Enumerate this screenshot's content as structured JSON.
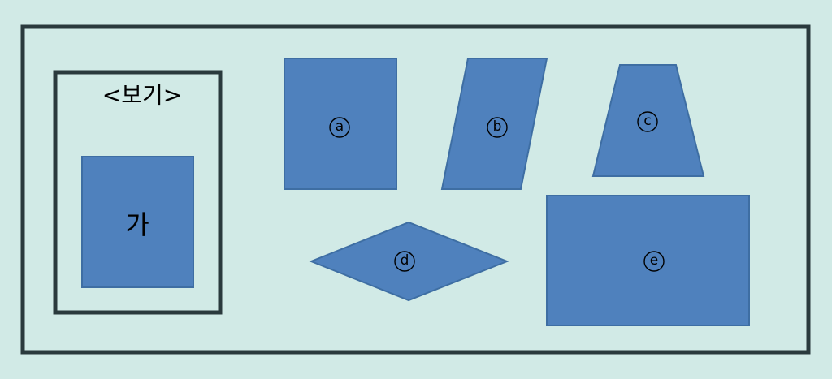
{
  "bogi": {
    "title": "<보기>",
    "reference_label": "가"
  },
  "shapes": {
    "a": {
      "label": "a",
      "kind": "rectangle"
    },
    "b": {
      "label": "b",
      "kind": "parallelogram"
    },
    "c": {
      "label": "c",
      "kind": "trapezoid"
    },
    "d": {
      "label": "d",
      "kind": "rhombus"
    },
    "e": {
      "label": "e",
      "kind": "rectangle"
    }
  },
  "colors": {
    "background": "#d1eae6",
    "shape_fill": "#4f81bd",
    "shape_stroke": "#3e6ea3",
    "frame": "#2a3a3d"
  }
}
